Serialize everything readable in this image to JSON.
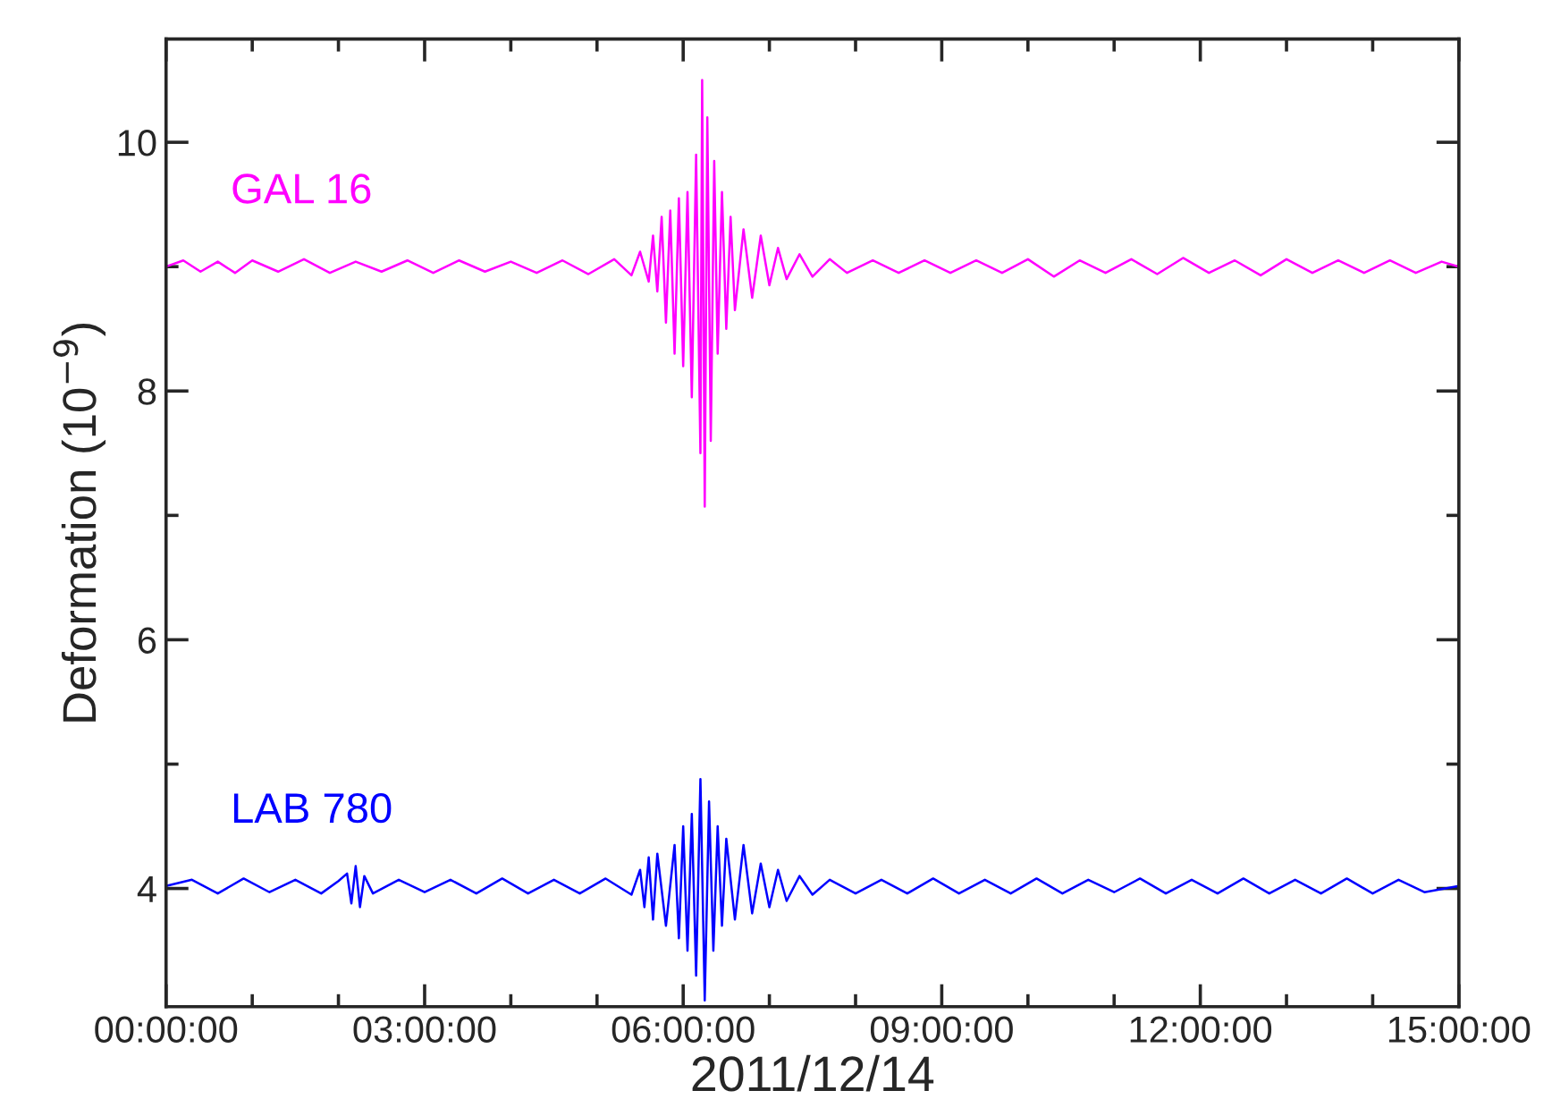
{
  "chart_data": {
    "type": "line",
    "xlabel": "2011/12/14",
    "ylabel": "Deformation (10$^{−9}$)",
    "xlim": [
      0,
      15
    ],
    "ylim": [
      3.05,
      10.83
    ],
    "xticks": [
      {
        "value": 0,
        "label": "00:00:00"
      },
      {
        "value": 1,
        "label": null
      },
      {
        "value": 2,
        "label": null
      },
      {
        "value": 3,
        "label": "03:00:00"
      },
      {
        "value": 4,
        "label": null
      },
      {
        "value": 5,
        "label": null
      },
      {
        "value": 6,
        "label": "06:00:00"
      },
      {
        "value": 7,
        "label": null
      },
      {
        "value": 8,
        "label": null
      },
      {
        "value": 9,
        "label": "09:00:00"
      },
      {
        "value": 10,
        "label": null
      },
      {
        "value": 11,
        "label": null
      },
      {
        "value": 12,
        "label": "12:00:00"
      },
      {
        "value": 13,
        "label": null
      },
      {
        "value": 14,
        "label": null
      },
      {
        "value": 15,
        "label": "15:00:00"
      }
    ],
    "yticks": [
      4,
      {
        "value": 5,
        "label": null
      },
      6,
      {
        "value": 7,
        "label": null
      },
      8,
      {
        "value": 9,
        "label": null
      },
      10
    ],
    "grid": false,
    "legend": false,
    "marker": "none",
    "line_style": "solid",
    "series": [
      {
        "name": "GAL 16",
        "color": "#ff00ff",
        "x": [
          0,
          0.2,
          0.4,
          0.6,
          0.8,
          1.0,
          1.3,
          1.6,
          1.9,
          2.2,
          2.5,
          2.8,
          3.1,
          3.4,
          3.7,
          4.0,
          4.3,
          4.6,
          4.9,
          5.2,
          5.4,
          5.5,
          5.6,
          5.65,
          5.7,
          5.75,
          5.8,
          5.85,
          5.9,
          5.95,
          6.0,
          6.05,
          6.1,
          6.15,
          6.2,
          6.22,
          6.25,
          6.28,
          6.32,
          6.36,
          6.4,
          6.45,
          6.5,
          6.55,
          6.6,
          6.7,
          6.8,
          6.9,
          7.0,
          7.1,
          7.2,
          7.35,
          7.5,
          7.7,
          7.9,
          8.2,
          8.5,
          8.8,
          9.1,
          9.4,
          9.7,
          10.0,
          10.3,
          10.6,
          10.9,
          11.2,
          11.5,
          11.8,
          12.1,
          12.4,
          12.7,
          13.0,
          13.3,
          13.6,
          13.9,
          14.2,
          14.5,
          14.8,
          15
        ],
        "values": [
          9.0,
          9.05,
          8.96,
          9.04,
          8.95,
          9.05,
          8.96,
          9.06,
          8.95,
          9.04,
          8.96,
          9.05,
          8.95,
          9.05,
          8.96,
          9.04,
          8.95,
          9.05,
          8.94,
          9.06,
          8.93,
          9.12,
          8.88,
          9.25,
          8.8,
          9.4,
          8.55,
          9.45,
          8.3,
          9.55,
          8.2,
          9.6,
          7.95,
          9.9,
          7.5,
          10.5,
          7.07,
          10.2,
          7.6,
          9.85,
          8.3,
          9.6,
          8.5,
          9.4,
          8.65,
          9.3,
          8.75,
          9.25,
          8.85,
          9.15,
          8.9,
          9.1,
          8.92,
          9.06,
          8.95,
          9.05,
          8.95,
          9.05,
          8.95,
          9.05,
          8.95,
          9.06,
          8.92,
          9.05,
          8.95,
          9.06,
          8.94,
          9.07,
          8.95,
          9.05,
          8.93,
          9.06,
          8.95,
          9.05,
          8.95,
          9.05,
          8.95,
          9.04,
          9.0
        ]
      },
      {
        "name": "LAB 780",
        "color": "#0000ff",
        "x": [
          0,
          0.3,
          0.6,
          0.9,
          1.2,
          1.5,
          1.8,
          2.0,
          2.1,
          2.15,
          2.2,
          2.25,
          2.3,
          2.4,
          2.7,
          3.0,
          3.3,
          3.6,
          3.9,
          4.2,
          4.5,
          4.8,
          5.1,
          5.4,
          5.5,
          5.55,
          5.6,
          5.65,
          5.7,
          5.8,
          5.9,
          5.95,
          6.0,
          6.05,
          6.1,
          6.15,
          6.2,
          6.25,
          6.3,
          6.35,
          6.4,
          6.45,
          6.5,
          6.6,
          6.7,
          6.8,
          6.9,
          7.0,
          7.1,
          7.2,
          7.35,
          7.5,
          7.7,
          8.0,
          8.3,
          8.6,
          8.9,
          9.2,
          9.5,
          9.8,
          10.1,
          10.4,
          10.7,
          11.0,
          11.3,
          11.6,
          11.9,
          12.2,
          12.5,
          12.8,
          13.1,
          13.4,
          13.7,
          14.0,
          14.3,
          14.6,
          15
        ],
        "values": [
          4.02,
          4.07,
          3.96,
          4.08,
          3.97,
          4.07,
          3.96,
          4.06,
          4.12,
          3.88,
          4.18,
          3.85,
          4.1,
          3.96,
          4.07,
          3.97,
          4.07,
          3.96,
          4.08,
          3.96,
          4.07,
          3.96,
          4.08,
          3.95,
          4.15,
          3.85,
          4.25,
          3.75,
          4.28,
          3.7,
          4.35,
          3.6,
          4.5,
          3.5,
          4.6,
          3.3,
          4.88,
          3.1,
          4.7,
          3.5,
          4.5,
          3.7,
          4.4,
          3.75,
          4.35,
          3.8,
          4.2,
          3.85,
          4.15,
          3.9,
          4.1,
          3.95,
          4.07,
          3.96,
          4.07,
          3.96,
          4.08,
          3.96,
          4.07,
          3.96,
          4.08,
          3.96,
          4.07,
          3.97,
          4.08,
          3.96,
          4.07,
          3.96,
          4.08,
          3.96,
          4.07,
          3.96,
          4.08,
          3.96,
          4.07,
          3.97,
          4.02
        ]
      }
    ]
  }
}
